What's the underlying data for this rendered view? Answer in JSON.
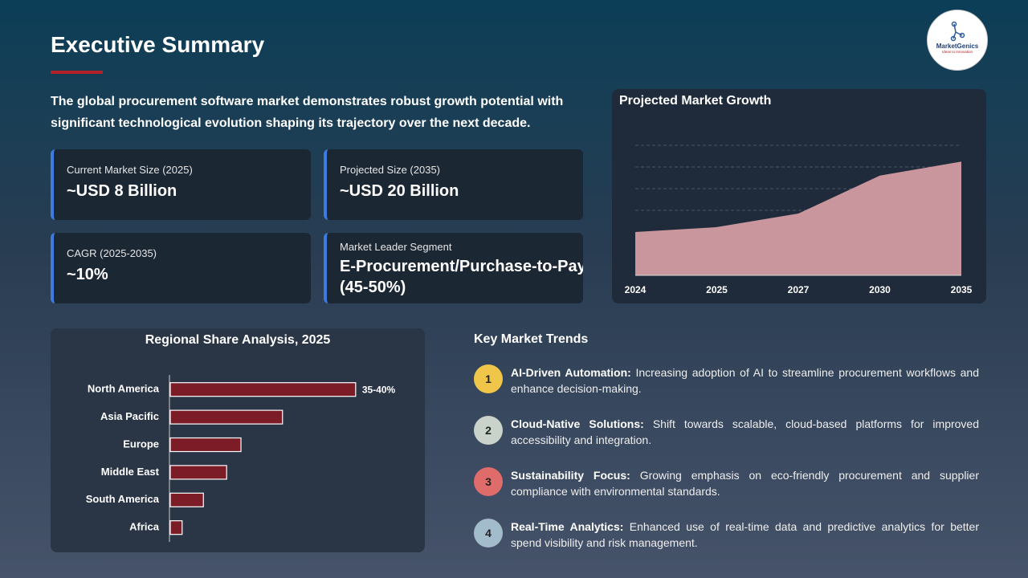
{
  "header": {
    "title": "Executive Summary",
    "logo": {
      "name": "MarketGenics",
      "tagline": "Ideas to Innovation"
    }
  },
  "intro": "The global procurement software market demonstrates robust growth potential with significant technological evolution shaping its trajectory over the next decade.",
  "metrics": [
    {
      "label": "Current Market Size (2025)",
      "value": "~USD 8 Billion"
    },
    {
      "label": "Projected Size (2035)",
      "value": "~USD 20 Billion"
    },
    {
      "label": "CAGR (2025-2035)",
      "value": "~10%"
    },
    {
      "label": "Market Leader Segment",
      "value": "E-Procurement/Purchase-to-Pay (45-50%)"
    }
  ],
  "chart_data": [
    {
      "type": "area",
      "title": "Projected Market Growth",
      "categories": [
        "2024",
        "2025",
        "2027",
        "2030",
        "2035"
      ],
      "values": [
        8,
        8.9,
        11.4,
        18.4,
        21
      ],
      "color": "#c9969d",
      "ylim": [
        0,
        24
      ],
      "yticks": [
        12,
        16,
        20,
        24
      ],
      "grid": true
    },
    {
      "type": "hbar",
      "title": "Regional Share Analysis, 2025",
      "categories": [
        "North America",
        "Asia Pacific",
        "Europe",
        "Middle East",
        "South America",
        "Africa"
      ],
      "values": [
        37.5,
        22.7,
        14.3,
        11.4,
        6.7,
        2.4
      ],
      "value_labels": [
        "35-40%",
        null,
        null,
        null,
        null,
        null
      ],
      "color": "#7b1c27",
      "xlim": [
        0,
        45
      ]
    }
  ],
  "trends": {
    "title": "Key Market Trends",
    "items": [
      {
        "number": "1",
        "title": "AI-Driven Automation:",
        "text": " Increasing adoption of AI to streamline procurement workflows and enhance decision-making.",
        "color": "#f0c64a"
      },
      {
        "number": "2",
        "title": "Cloud-Native Solutions:",
        "text": " Shift towards scalable, cloud-based platforms for improved accessibility and integration.",
        "color": "#c9d3c9"
      },
      {
        "number": "3",
        "title": "Sustainability Focus:",
        "text": " Growing emphasis on eco-friendly procurement and supplier compliance with environmental standards.",
        "color": "#e06b6b"
      },
      {
        "number": "4",
        "title": "Real-Time Analytics:",
        "text": " Enhanced use of real-time data and predictive analytics for better spend visibility and risk management.",
        "color": "#a3bccb"
      }
    ]
  }
}
